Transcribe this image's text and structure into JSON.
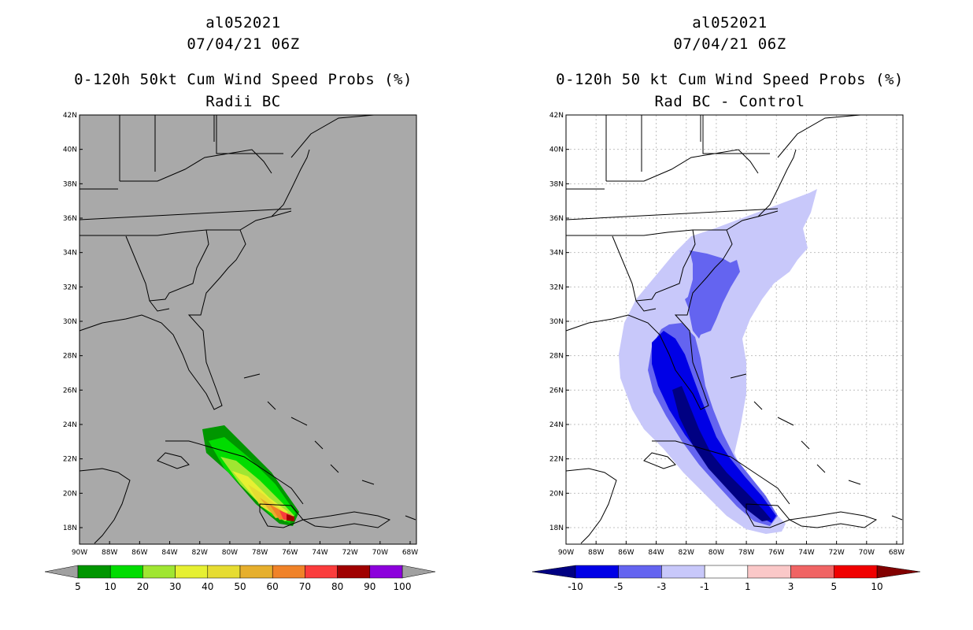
{
  "left_panel": {
    "storm_id": "al052021",
    "datetime": "07/04/21 06Z",
    "title": "0-120h 50kt Cum Wind Speed Probs (%)",
    "subtitle": "Radii BC",
    "colors": {
      "map_background": "#a9a9a9"
    },
    "colorbar": {
      "labels": [
        "5",
        "10",
        "20",
        "30",
        "40",
        "50",
        "60",
        "70",
        "80",
        "90",
        "100"
      ],
      "colors": [
        "#009600",
        "#00dc00",
        "#a0e632",
        "#e6f032",
        "#e6dc32",
        "#e6af2d",
        "#f08228",
        "#fa3c3c",
        "#a00000",
        "#8c00dc"
      ],
      "end_color": "#a0a0a0"
    }
  },
  "right_panel": {
    "storm_id": "al052021",
    "datetime": "07/04/21 06Z",
    "title": "0-120h 50 kt Cum Wind Speed Probs (%)",
    "subtitle": "Rad BC - Control",
    "colors": {
      "map_background": "#ffffff"
    },
    "colorbar": {
      "labels": [
        "-10",
        "-5",
        "-3",
        "-1",
        "1",
        "3",
        "5",
        "10"
      ],
      "colors": [
        "#0000e6",
        "#6464f0",
        "#c8c8fa",
        "#ffffff",
        "#fac8c8",
        "#f06464",
        "#f00000"
      ],
      "low_end_color": "#000082",
      "high_end_color": "#820000"
    }
  },
  "axes": {
    "lat_labels": [
      "42N",
      "40N",
      "38N",
      "36N",
      "34N",
      "32N",
      "30N",
      "28N",
      "26N",
      "24N",
      "22N",
      "20N",
      "18N"
    ],
    "lon_labels": [
      "90W",
      "88W",
      "86W",
      "84W",
      "82W",
      "80W",
      "78W",
      "76W",
      "74W",
      "72W",
      "70W",
      "68W"
    ]
  }
}
